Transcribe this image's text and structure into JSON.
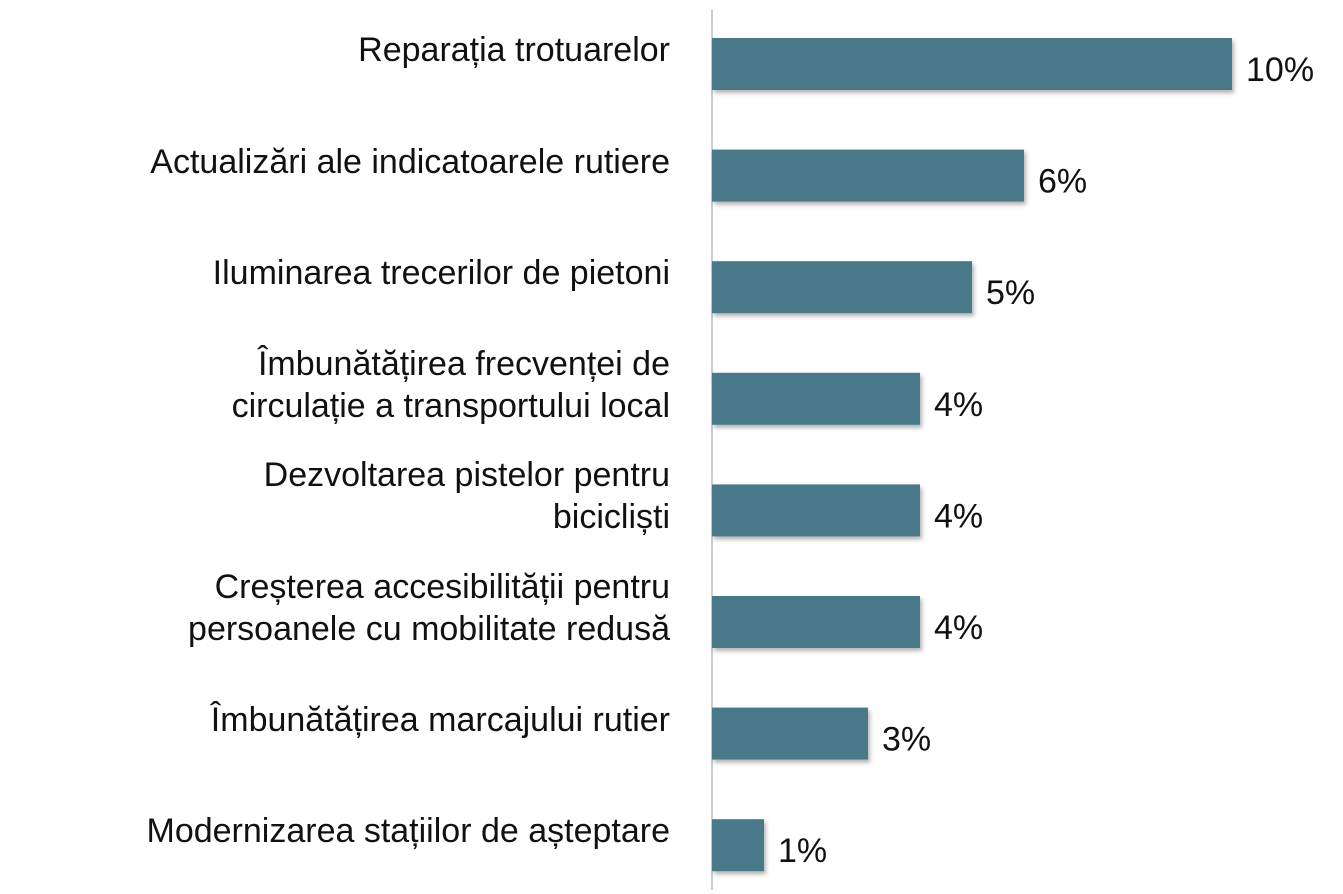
{
  "chart_data": {
    "type": "bar",
    "orientation": "horizontal",
    "categories": [
      "Reparația trotuarelor",
      "Actualizări ale indicatoarele rutiere",
      "Iluminarea trecerilor de pietoni",
      "Îmbunătățirea frecvenței de\ncirculație a transportului local",
      "Dezvoltarea pistelor pentru\nbicicliști",
      "Creșterea accesibilității pentru\npersoanele cu mobilitate redusă",
      "Îmbunătățirea marcajului rutier",
      "Modernizarea stațiilor de așteptare"
    ],
    "values": [
      10,
      6,
      5,
      4,
      4,
      4,
      3,
      1
    ],
    "value_labels": [
      "10%",
      "6%",
      "5%",
      "4%",
      "4%",
      "4%",
      "3%",
      "1%"
    ],
    "color": "#4a7888",
    "xlim": [
      0,
      10
    ]
  }
}
